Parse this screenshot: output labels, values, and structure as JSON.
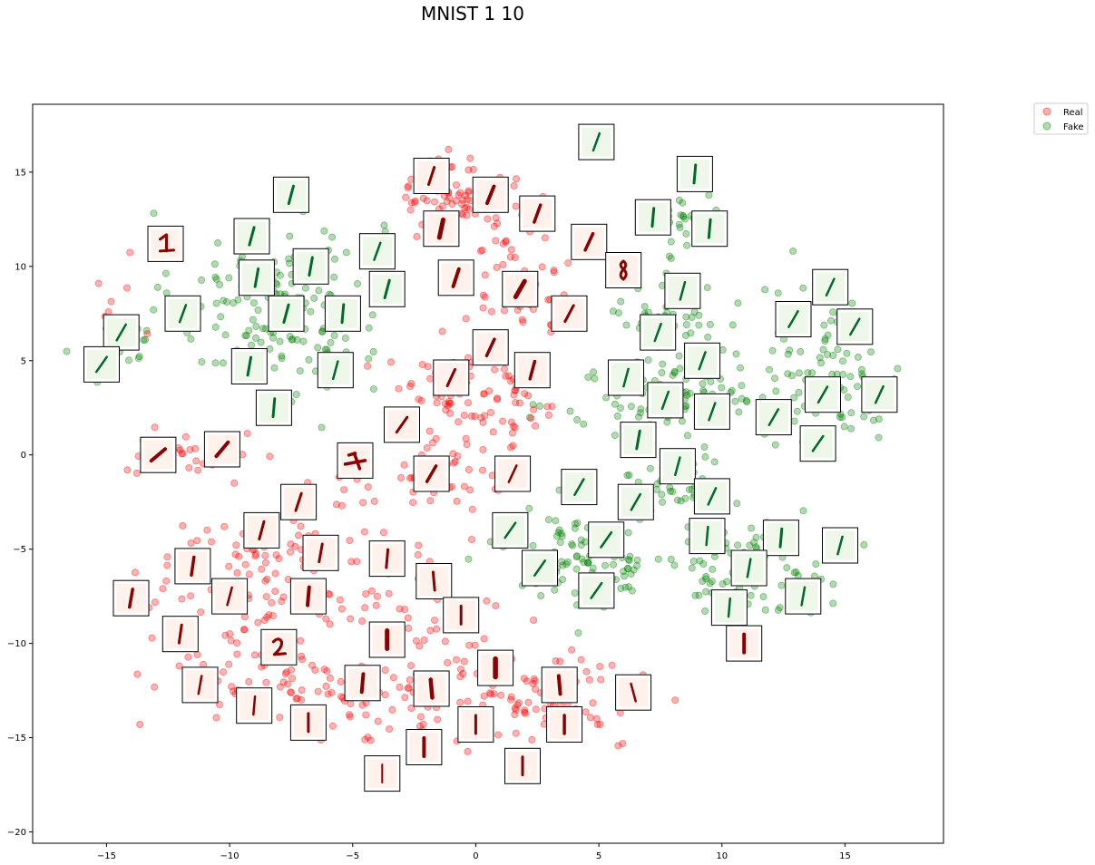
{
  "chart_data": {
    "type": "scatter",
    "title": "MNIST 1 10",
    "xlabel": "",
    "ylabel": "",
    "xlim": [
      -18,
      19
    ],
    "ylim": [
      -20.6,
      18.6
    ],
    "xticks": [
      -15,
      -10,
      -5,
      0,
      5,
      10,
      15
    ],
    "yticks": [
      -20,
      -15,
      -10,
      -5,
      0,
      5,
      10,
      15
    ],
    "grid": false,
    "legend_position": "outside top-right",
    "series": [
      {
        "name": "Real",
        "color": "#ff0000",
        "alpha": 0.3
      },
      {
        "name": "Fake",
        "color": "#008000",
        "alpha": 0.3
      }
    ],
    "clusters": [
      {
        "series": "Real",
        "cx": -1.0,
        "cy": 14.0,
        "sx": 1.2,
        "sy": 1.3,
        "n": 70
      },
      {
        "series": "Real",
        "cx": 1.8,
        "cy": 10.0,
        "sx": 1.4,
        "sy": 2.4,
        "n": 60
      },
      {
        "series": "Real",
        "cx": -1.0,
        "cy": 3.0,
        "sx": 2.2,
        "sy": 2.0,
        "n": 60
      },
      {
        "series": "Real",
        "cx": 1.5,
        "cy": 2.5,
        "sx": 1.5,
        "sy": 1.5,
        "n": 30
      },
      {
        "series": "Real",
        "cx": -11.5,
        "cy": 0.0,
        "sx": 1.6,
        "sy": 0.8,
        "n": 30
      },
      {
        "series": "Real",
        "cx": -1.5,
        "cy": -1.5,
        "sx": 2.2,
        "sy": 1.2,
        "n": 30
      },
      {
        "series": "Real",
        "cx": -7.5,
        "cy": -6.5,
        "sx": 3.8,
        "sy": 3.0,
        "n": 150
      },
      {
        "series": "Real",
        "cx": -9.0,
        "cy": -12.0,
        "sx": 2.5,
        "sy": 1.8,
        "n": 60
      },
      {
        "series": "Real",
        "cx": -2.5,
        "cy": -12.5,
        "sx": 2.5,
        "sy": 2.2,
        "n": 80
      },
      {
        "series": "Real",
        "cx": 3.0,
        "cy": -13.0,
        "sx": 2.6,
        "sy": 1.8,
        "n": 90
      },
      {
        "series": "Real",
        "cx": -14.5,
        "cy": 7.0,
        "sx": 0.9,
        "sy": 1.5,
        "n": 12
      },
      {
        "series": "Real",
        "cx": 10.8,
        "cy": -10.0,
        "sx": 0.4,
        "sy": 0.5,
        "n": 6
      },
      {
        "series": "Fake",
        "cx": -8.0,
        "cy": 8.0,
        "sx": 2.8,
        "sy": 3.3,
        "n": 160
      },
      {
        "series": "Fake",
        "cx": -14.5,
        "cy": 5.8,
        "sx": 1.0,
        "sy": 1.0,
        "n": 20
      },
      {
        "series": "Fake",
        "cx": 8.5,
        "cy": 12.5,
        "sx": 1.0,
        "sy": 1.3,
        "n": 30
      },
      {
        "series": "Fake",
        "cx": 8.0,
        "cy": 7.5,
        "sx": 1.3,
        "sy": 1.5,
        "n": 50
      },
      {
        "series": "Fake",
        "cx": 8.0,
        "cy": 3.0,
        "sx": 3.0,
        "sy": 1.6,
        "n": 110
      },
      {
        "series": "Fake",
        "cx": 14.5,
        "cy": 4.5,
        "sx": 2.0,
        "sy": 3.0,
        "n": 90
      },
      {
        "series": "Fake",
        "cx": 4.5,
        "cy": -5.5,
        "sx": 2.2,
        "sy": 1.6,
        "n": 110
      },
      {
        "series": "Fake",
        "cx": 11.0,
        "cy": -6.0,
        "sx": 2.2,
        "sy": 1.6,
        "n": 80
      },
      {
        "series": "Fake",
        "cx": 8.0,
        "cy": -1.5,
        "sx": 1.5,
        "sy": 1.2,
        "n": 40
      }
    ],
    "thumbnails": [
      {
        "series": "Real",
        "x": -1.8,
        "y": 14.8,
        "angle": 18,
        "w": 3
      },
      {
        "series": "Real",
        "x": 0.6,
        "y": 13.8,
        "angle": 22,
        "w": 4
      },
      {
        "series": "Real",
        "x": 2.5,
        "y": 12.8,
        "angle": 20,
        "w": 3.5
      },
      {
        "series": "Real",
        "x": -1.4,
        "y": 12.0,
        "angle": 12,
        "w": 5
      },
      {
        "series": "Real",
        "x": 4.6,
        "y": 11.3,
        "angle": 25,
        "w": 3.5
      },
      {
        "series": "Real",
        "x": -0.8,
        "y": 9.4,
        "angle": 18,
        "w": 4
      },
      {
        "series": "Real",
        "x": 1.8,
        "y": 8.8,
        "angle": 30,
        "w": 5
      },
      {
        "series": "Real",
        "x": 6.0,
        "y": 9.8,
        "angle": 5,
        "w": 3,
        "glyph": "8"
      },
      {
        "series": "Real",
        "x": 3.8,
        "y": 7.5,
        "angle": 28,
        "w": 3
      },
      {
        "series": "Real",
        "x": 0.6,
        "y": 5.7,
        "angle": 25,
        "w": 3.5
      },
      {
        "series": "Real",
        "x": 2.3,
        "y": 4.5,
        "angle": 15,
        "w": 3.5
      },
      {
        "series": "Real",
        "x": -1.0,
        "y": 4.1,
        "angle": 25,
        "w": 3
      },
      {
        "series": "Real",
        "x": -3.0,
        "y": 1.6,
        "angle": 35,
        "w": 3
      },
      {
        "series": "Real",
        "x": -12.9,
        "y": 0.0,
        "angle": 50,
        "w": 4
      },
      {
        "series": "Real",
        "x": -10.3,
        "y": 0.3,
        "angle": 40,
        "w": 4
      },
      {
        "series": "Real",
        "x": -4.9,
        "y": -0.3,
        "angle": 0,
        "w": 4,
        "glyph": "1h"
      },
      {
        "series": "Real",
        "x": -1.8,
        "y": -1.0,
        "angle": 30,
        "w": 3.5
      },
      {
        "series": "Real",
        "x": 1.5,
        "y": -1.0,
        "angle": 25,
        "w": 2.5
      },
      {
        "series": "Real",
        "x": -7.2,
        "y": -2.5,
        "angle": 18,
        "w": 3
      },
      {
        "series": "Real",
        "x": -8.7,
        "y": -4.0,
        "angle": 15,
        "w": 3
      },
      {
        "series": "Real",
        "x": -6.3,
        "y": -5.2,
        "angle": 10,
        "w": 3
      },
      {
        "series": "Real",
        "x": -3.6,
        "y": -5.5,
        "angle": 5,
        "w": 3
      },
      {
        "series": "Real",
        "x": -11.5,
        "y": -5.9,
        "angle": 8,
        "w": 3.5
      },
      {
        "series": "Real",
        "x": -1.7,
        "y": -6.7,
        "angle": -5,
        "w": 3
      },
      {
        "series": "Real",
        "x": -14.0,
        "y": -7.6,
        "angle": 10,
        "w": 3.5
      },
      {
        "series": "Real",
        "x": -10.0,
        "y": -7.5,
        "angle": 15,
        "w": 2.5
      },
      {
        "series": "Real",
        "x": -6.8,
        "y": -7.5,
        "angle": 5,
        "w": 4
      },
      {
        "series": "Real",
        "x": -0.6,
        "y": -8.5,
        "angle": 0,
        "w": 3
      },
      {
        "series": "Real",
        "x": -12.0,
        "y": -9.5,
        "angle": 8,
        "w": 3
      },
      {
        "series": "Real",
        "x": -8.0,
        "y": -10.2,
        "angle": 0,
        "w": 3.5,
        "glyph": "2"
      },
      {
        "series": "Real",
        "x": -3.6,
        "y": -9.8,
        "angle": 0,
        "w": 5
      },
      {
        "series": "Real",
        "x": 0.8,
        "y": -11.3,
        "angle": 0,
        "w": 5.5
      },
      {
        "series": "Real",
        "x": -11.2,
        "y": -12.2,
        "angle": 10,
        "w": 2.5
      },
      {
        "series": "Real",
        "x": -4.6,
        "y": -12.1,
        "angle": 5,
        "w": 4
      },
      {
        "series": "Real",
        "x": -1.8,
        "y": -12.4,
        "angle": -5,
        "w": 4.5
      },
      {
        "series": "Real",
        "x": 3.4,
        "y": -12.2,
        "angle": -5,
        "w": 4
      },
      {
        "series": "Real",
        "x": 6.4,
        "y": -12.6,
        "angle": -15,
        "w": 2.5
      },
      {
        "series": "Real",
        "x": -9.0,
        "y": -13.3,
        "angle": 5,
        "w": 2.5
      },
      {
        "series": "Real",
        "x": -6.8,
        "y": -14.2,
        "angle": 0,
        "w": 3
      },
      {
        "series": "Real",
        "x": 0.0,
        "y": -14.3,
        "angle": 0,
        "w": 3
      },
      {
        "series": "Real",
        "x": 3.6,
        "y": -14.3,
        "angle": 0,
        "w": 3.5
      },
      {
        "series": "Real",
        "x": -2.1,
        "y": -15.5,
        "angle": 0,
        "w": 4
      },
      {
        "series": "Real",
        "x": -3.8,
        "y": -16.9,
        "angle": 0,
        "w": 2
      },
      {
        "series": "Real",
        "x": 1.9,
        "y": -16.5,
        "angle": 0,
        "w": 3
      },
      {
        "series": "Real",
        "x": 10.9,
        "y": -10.0,
        "angle": 0,
        "w": 4
      },
      {
        "series": "Fake",
        "x": 4.9,
        "y": 16.6,
        "angle": 20,
        "w": 2.5
      },
      {
        "series": "Fake",
        "x": 8.9,
        "y": 14.9,
        "angle": 5,
        "w": 3
      },
      {
        "series": "Fake",
        "x": -7.5,
        "y": 13.8,
        "angle": 15,
        "w": 3
      },
      {
        "series": "Fake",
        "x": 7.2,
        "y": 12.6,
        "angle": 5,
        "w": 3
      },
      {
        "series": "Fake",
        "x": 9.5,
        "y": 12.0,
        "angle": 5,
        "w": 3
      },
      {
        "series": "Fake",
        "x": -9.1,
        "y": 11.6,
        "angle": 15,
        "w": 3
      },
      {
        "series": "Fake",
        "x": -4.0,
        "y": 10.8,
        "angle": 20,
        "w": 2.5
      },
      {
        "series": "Fake",
        "x": -6.7,
        "y": 10.0,
        "angle": 10,
        "w": 3
      },
      {
        "series": "Fake",
        "x": -8.9,
        "y": 9.4,
        "angle": 10,
        "w": 3
      },
      {
        "series": "Fake",
        "x": -3.6,
        "y": 8.8,
        "angle": 15,
        "w": 3
      },
      {
        "series": "Fake",
        "x": 8.4,
        "y": 8.7,
        "angle": 15,
        "w": 2.5
      },
      {
        "series": "Fake",
        "x": 14.4,
        "y": 8.9,
        "angle": 25,
        "w": 2.5
      },
      {
        "series": "Fake",
        "x": -5.4,
        "y": 7.5,
        "angle": 5,
        "w": 3
      },
      {
        "series": "Fake",
        "x": -7.7,
        "y": 7.5,
        "angle": 15,
        "w": 3
      },
      {
        "series": "Fake",
        "x": -11.9,
        "y": 7.5,
        "angle": 20,
        "w": 2.5
      },
      {
        "series": "Fake",
        "x": 12.9,
        "y": 7.2,
        "angle": 30,
        "w": 2.5
      },
      {
        "series": "Fake",
        "x": 15.4,
        "y": 6.8,
        "angle": 30,
        "w": 2.5
      },
      {
        "series": "Fake",
        "x": -14.4,
        "y": 6.5,
        "angle": 30,
        "w": 2.5
      },
      {
        "series": "Fake",
        "x": 7.4,
        "y": 6.5,
        "angle": 20,
        "w": 2.5
      },
      {
        "series": "Fake",
        "x": -9.2,
        "y": 4.7,
        "angle": 10,
        "w": 3
      },
      {
        "series": "Fake",
        "x": -5.7,
        "y": 4.5,
        "angle": 15,
        "w": 2.5
      },
      {
        "series": "Fake",
        "x": 9.2,
        "y": 5.0,
        "angle": 20,
        "w": 2.5
      },
      {
        "series": "Fake",
        "x": -15.2,
        "y": 4.8,
        "angle": 35,
        "w": 2.5
      },
      {
        "series": "Fake",
        "x": 6.1,
        "y": 4.1,
        "angle": 15,
        "w": 2.5
      },
      {
        "series": "Fake",
        "x": 7.7,
        "y": 2.9,
        "angle": 20,
        "w": 2.5
      },
      {
        "series": "Fake",
        "x": 9.6,
        "y": 2.3,
        "angle": 20,
        "w": 2.5
      },
      {
        "series": "Fake",
        "x": -8.2,
        "y": 2.5,
        "angle": 5,
        "w": 3
      },
      {
        "series": "Fake",
        "x": 14.1,
        "y": 3.2,
        "angle": 30,
        "w": 2.5
      },
      {
        "series": "Fake",
        "x": 16.4,
        "y": 3.2,
        "angle": 25,
        "w": 2.5
      },
      {
        "series": "Fake",
        "x": 12.1,
        "y": 2.0,
        "angle": 30,
        "w": 2.5
      },
      {
        "series": "Fake",
        "x": 13.9,
        "y": 0.6,
        "angle": 35,
        "w": 2.5
      },
      {
        "series": "Fake",
        "x": 6.6,
        "y": 0.8,
        "angle": 10,
        "w": 3
      },
      {
        "series": "Fake",
        "x": 8.2,
        "y": -0.6,
        "angle": 15,
        "w": 2.5
      },
      {
        "series": "Fake",
        "x": 4.2,
        "y": -1.7,
        "angle": 30,
        "w": 2.5
      },
      {
        "series": "Fake",
        "x": 6.5,
        "y": -2.5,
        "angle": 30,
        "w": 2.5
      },
      {
        "series": "Fake",
        "x": 9.6,
        "y": -2.2,
        "angle": 25,
        "w": 2.5
      },
      {
        "series": "Fake",
        "x": 1.4,
        "y": -4.0,
        "angle": 35,
        "w": 2.5
      },
      {
        "series": "Fake",
        "x": 5.3,
        "y": -4.5,
        "angle": 35,
        "w": 2.5
      },
      {
        "series": "Fake",
        "x": 9.4,
        "y": -4.3,
        "angle": 5,
        "w": 2.5
      },
      {
        "series": "Fake",
        "x": 12.4,
        "y": -4.4,
        "angle": 5,
        "w": 3
      },
      {
        "series": "Fake",
        "x": 14.8,
        "y": -4.8,
        "angle": 15,
        "w": 2.5
      },
      {
        "series": "Fake",
        "x": 2.6,
        "y": -6.0,
        "angle": 35,
        "w": 2.5
      },
      {
        "series": "Fake",
        "x": 4.9,
        "y": -7.2,
        "angle": 35,
        "w": 2.5
      },
      {
        "series": "Fake",
        "x": 11.1,
        "y": -6.0,
        "angle": 10,
        "w": 2.5
      },
      {
        "series": "Fake",
        "x": 13.3,
        "y": -7.5,
        "angle": 10,
        "w": 2.5
      },
      {
        "series": "Fake",
        "x": 10.3,
        "y": -8.1,
        "angle": 5,
        "w": 2.5
      }
    ]
  }
}
